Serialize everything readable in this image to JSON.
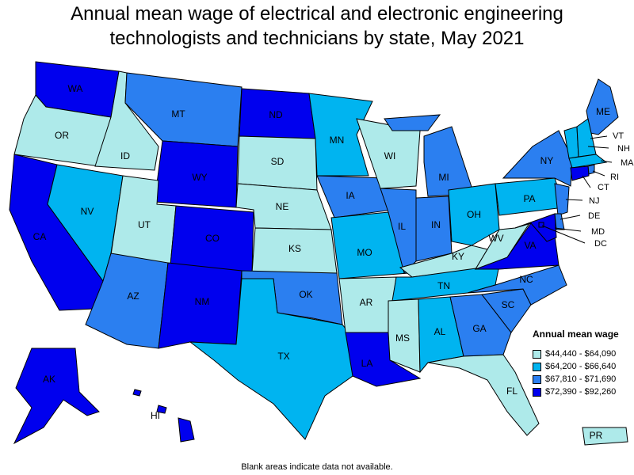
{
  "title_line1": "Annual mean wage of electrical and electronic engineering",
  "title_line2": "technologists and technicians by state, May 2021",
  "legend": {
    "title": "Annual mean wage",
    "bins": [
      {
        "label": "$44,440 - $64,090",
        "color": "#aeeaea"
      },
      {
        "label": "$64,200 - $66,640",
        "color": "#00b4f0"
      },
      {
        "label": "$67,810 - $71,690",
        "color": "#2b7ff0"
      },
      {
        "label": "$72,390 - $92,260",
        "color": "#0000ee"
      }
    ]
  },
  "states": [
    {
      "code": "WA",
      "bin": 3
    },
    {
      "code": "OR",
      "bin": 0
    },
    {
      "code": "CA",
      "bin": 3
    },
    {
      "code": "ID",
      "bin": 0
    },
    {
      "code": "NV",
      "bin": 1
    },
    {
      "code": "MT",
      "bin": 2
    },
    {
      "code": "WY",
      "bin": 3
    },
    {
      "code": "UT",
      "bin": 0
    },
    {
      "code": "AZ",
      "bin": 2
    },
    {
      "code": "CO",
      "bin": 3
    },
    {
      "code": "NM",
      "bin": 3
    },
    {
      "code": "ND",
      "bin": 3
    },
    {
      "code": "SD",
      "bin": 0
    },
    {
      "code": "NE",
      "bin": 0
    },
    {
      "code": "KS",
      "bin": 0
    },
    {
      "code": "OK",
      "bin": 2
    },
    {
      "code": "TX",
      "bin": 1
    },
    {
      "code": "MN",
      "bin": 1
    },
    {
      "code": "IA",
      "bin": 2
    },
    {
      "code": "MO",
      "bin": 1
    },
    {
      "code": "AR",
      "bin": 0
    },
    {
      "code": "LA",
      "bin": 3
    },
    {
      "code": "WI",
      "bin": 0
    },
    {
      "code": "IL",
      "bin": 2
    },
    {
      "code": "MI",
      "bin": 2
    },
    {
      "code": "IN",
      "bin": 2
    },
    {
      "code": "OH",
      "bin": 1
    },
    {
      "code": "KY",
      "bin": 0
    },
    {
      "code": "TN",
      "bin": 1
    },
    {
      "code": "MS",
      "bin": 0
    },
    {
      "code": "AL",
      "bin": 1
    },
    {
      "code": "GA",
      "bin": 2
    },
    {
      "code": "FL",
      "bin": 0
    },
    {
      "code": "SC",
      "bin": 2
    },
    {
      "code": "NC",
      "bin": 2
    },
    {
      "code": "VA",
      "bin": 3
    },
    {
      "code": "WV",
      "bin": 0
    },
    {
      "code": "PA",
      "bin": 1
    },
    {
      "code": "NY",
      "bin": 2
    },
    {
      "code": "ME",
      "bin": 2
    },
    {
      "code": "VT",
      "bin": 1
    },
    {
      "code": "NH",
      "bin": 1
    },
    {
      "code": "MA",
      "bin": 1
    },
    {
      "code": "RI",
      "bin": 2
    },
    {
      "code": "CT",
      "bin": 3
    },
    {
      "code": "NJ",
      "bin": 2
    },
    {
      "code": "DE",
      "bin": 2
    },
    {
      "code": "MD",
      "bin": 3
    },
    {
      "code": "DC",
      "bin": 3
    },
    {
      "code": "AK",
      "bin": 3
    },
    {
      "code": "HI",
      "bin": 3
    },
    {
      "code": "PR",
      "bin": 0
    }
  ],
  "footnote": "Blank areas indicate data not available."
}
